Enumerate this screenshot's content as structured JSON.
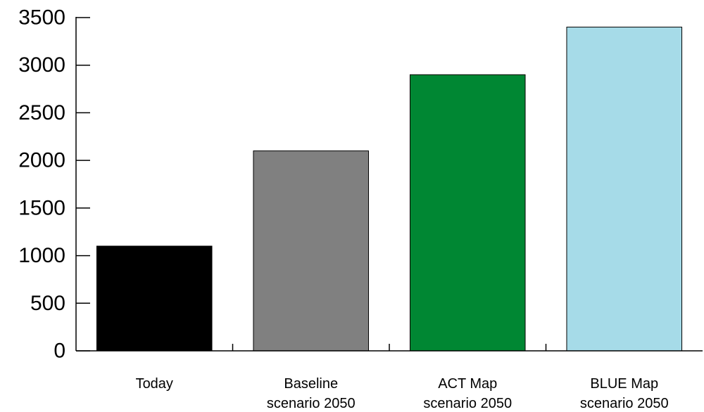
{
  "chart_data": {
    "type": "bar",
    "title": "",
    "xlabel": "",
    "ylabel": "",
    "ylim": [
      0,
      3500
    ],
    "yticks": [
      0,
      500,
      1000,
      1500,
      2000,
      2500,
      3000,
      3500
    ],
    "grid": false,
    "legend": "none",
    "categories": [
      [
        "Today"
      ],
      [
        "Baseline",
        "scenario 2050"
      ],
      [
        "ACT Map",
        "scenario 2050"
      ],
      [
        "BLUE Map",
        "scenario 2050"
      ]
    ],
    "values": [
      1100,
      2100,
      2900,
      3400
    ],
    "colors": [
      "#000000",
      "#808080",
      "#008733",
      "#a6dbe8"
    ]
  }
}
